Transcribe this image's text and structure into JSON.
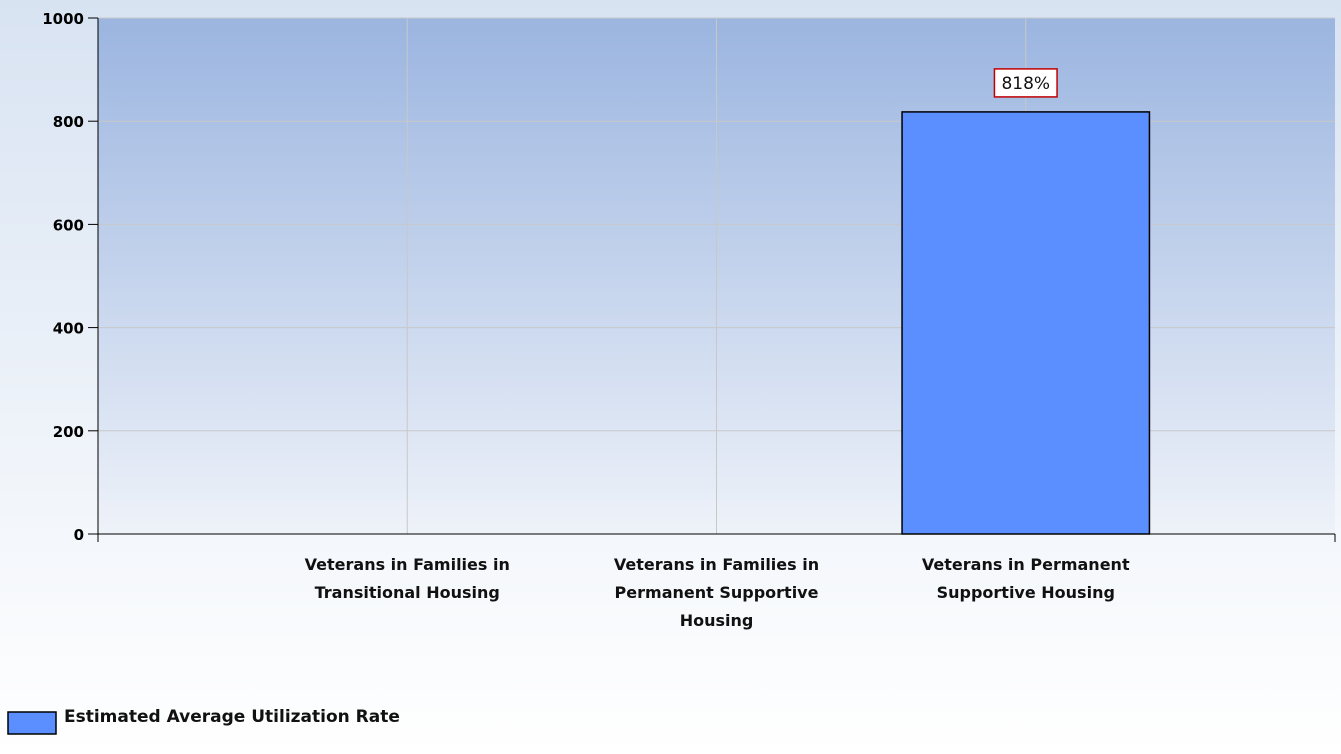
{
  "chart_data": {
    "type": "bar",
    "categories": [
      null,
      "Veterans in Families in Transitional Housing",
      "Veterans in Families in Permanent Supportive Housing",
      "Veterans in Permanent Supportive Housing",
      null
    ],
    "series": [
      {
        "name": "Estimated Average Utilization Rate",
        "color": "#5b8fff",
        "values": [
          null,
          0,
          0,
          818,
          null
        ],
        "value_labels": [
          null,
          null,
          null,
          "818%",
          null
        ]
      }
    ],
    "ylim": [
      0,
      1000
    ],
    "yticks": [
      0,
      200,
      400,
      600,
      800,
      1000
    ],
    "grid": true,
    "legend": "bottom-left"
  }
}
